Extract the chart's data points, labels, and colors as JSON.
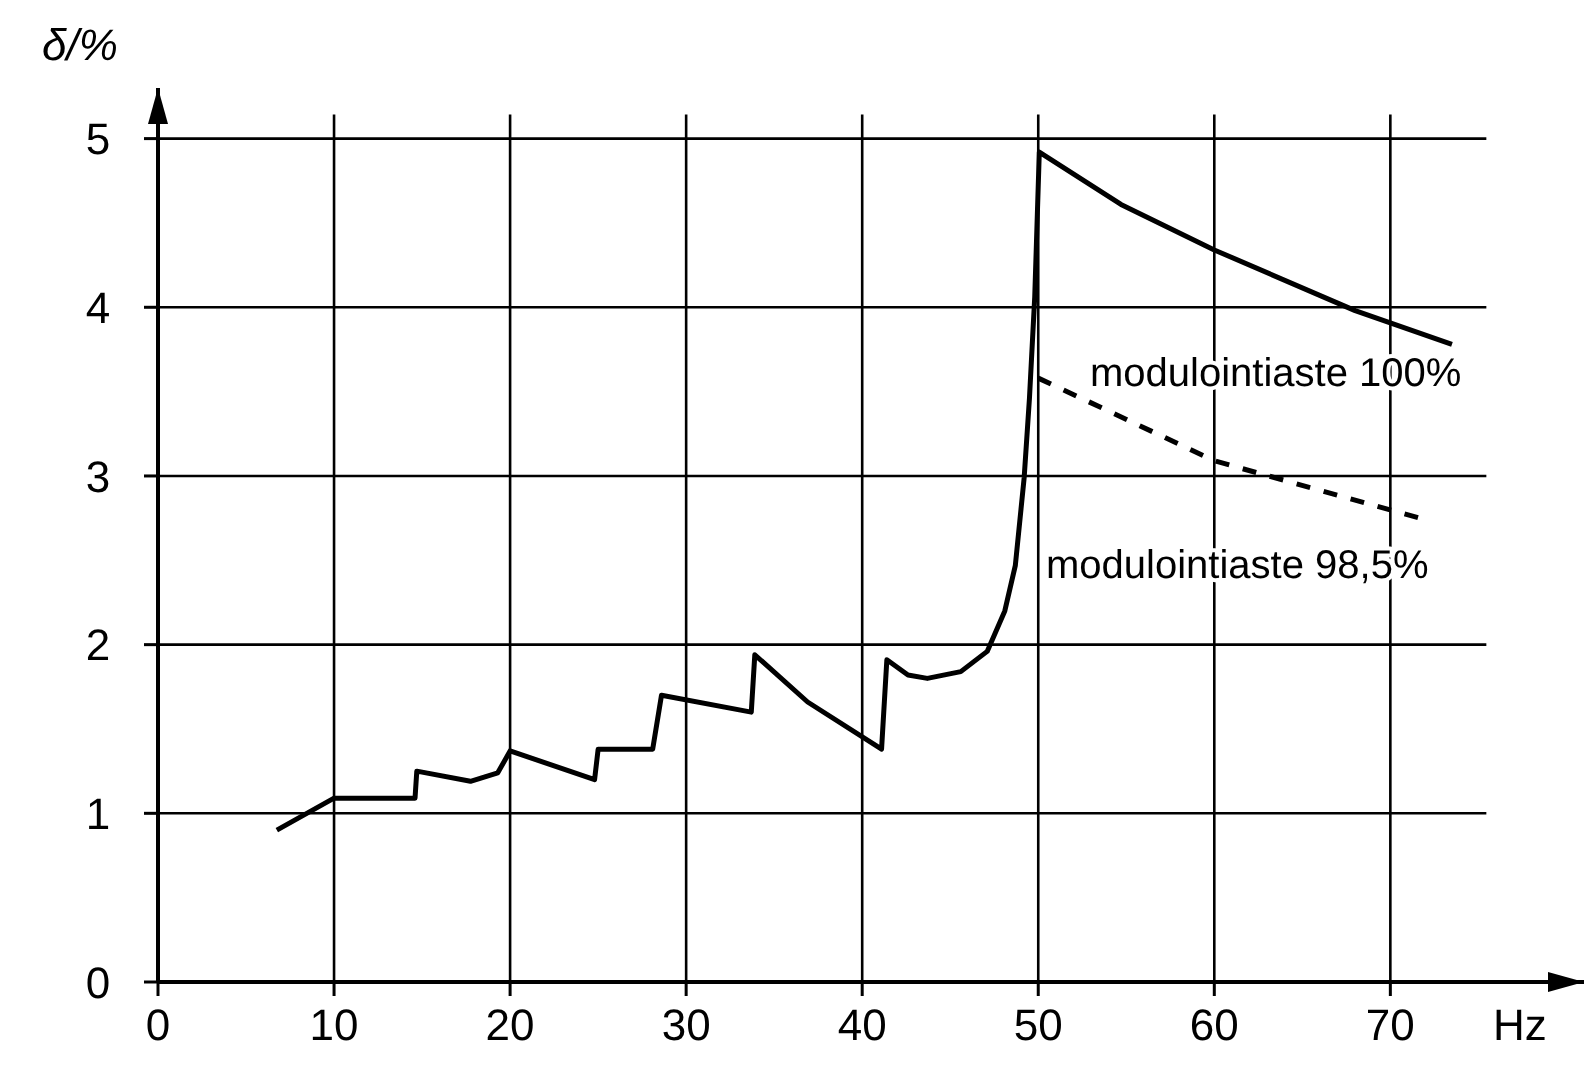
{
  "chart_data": {
    "type": "line",
    "xlabel": "Hz",
    "ylabel": "δ/%",
    "xlim": [
      0,
      81
    ],
    "ylim": [
      0,
      5.3
    ],
    "xticks": [
      0,
      10,
      20,
      30,
      40,
      50,
      60,
      70
    ],
    "yticks": [
      0,
      1,
      2,
      3,
      4,
      5
    ],
    "grid": true,
    "line_style": "solid",
    "series": [
      {
        "color": "#000000",
        "x": [
          6.75,
          10,
          14.6,
          14.7,
          17.75,
          19.3,
          20.0,
          24.8,
          25.0,
          28.1,
          28.6,
          33.7,
          33.9,
          36.9,
          41.1,
          41.4,
          42.6,
          43.7,
          45.6,
          47.1,
          48.1,
          48.7,
          49.2,
          49.5,
          49.8,
          50.06,
          54.7,
          60.0,
          68.0,
          73.5
        ],
        "values": [
          0.9,
          1.09,
          1.09,
          1.25,
          1.19,
          1.24,
          1.37,
          1.2,
          1.38,
          1.38,
          1.7,
          1.6,
          1.94,
          1.66,
          1.38,
          1.91,
          1.82,
          1.8,
          1.84,
          1.96,
          2.2,
          2.47,
          2.99,
          3.46,
          4.06,
          4.92,
          4.61,
          4.34,
          3.98,
          3.78
        ]
      },
      {
        "color": "#000000",
        "line_style": "dashed",
        "x": [
          50.0,
          54.3,
          60.0,
          72.0
        ],
        "values": [
          3.58,
          3.37,
          3.09,
          2.74
        ]
      }
    ],
    "annotations": [
      "modulointiaste 100%",
      "modulointiaste 98,5%"
    ]
  }
}
